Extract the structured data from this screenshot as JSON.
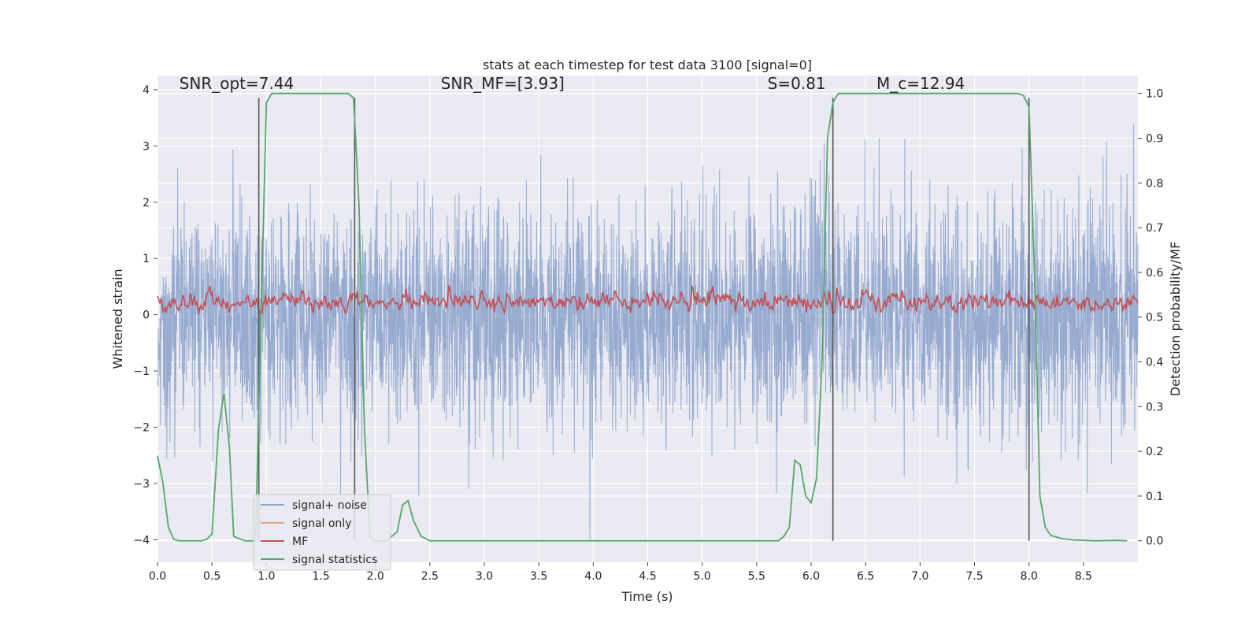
{
  "chart_data": {
    "type": "line",
    "title": "stats at each timestep for test data 3100 [signal=0]",
    "xlabel": "Time (s)",
    "ylabel_left": "Whitened strain",
    "ylabel_right": "Detection probability/MF",
    "xlim": [
      0,
      9.0
    ],
    "ylim_left": [
      -4.4,
      4.25
    ],
    "ylim_right": [
      -0.048,
      1.04
    ],
    "x_ticks": [
      0.0,
      0.5,
      1.0,
      1.5,
      2.0,
      2.5,
      3.0,
      3.5,
      4.0,
      4.5,
      5.0,
      5.5,
      6.0,
      6.5,
      7.0,
      7.5,
      8.0,
      8.5
    ],
    "x_tick_labels": [
      "0.0",
      "0.5",
      "1.0",
      "1.5",
      "2.0",
      "2.5",
      "3.0",
      "3.5",
      "4.0",
      "4.5",
      "5.0",
      "5.5",
      "6.0",
      "6.5",
      "7.0",
      "7.5",
      "8.0",
      "8.5"
    ],
    "y_left_ticks": [
      4,
      3,
      2,
      1,
      0,
      -1,
      -2,
      -3,
      -4
    ],
    "y_left_tick_labels": [
      "4",
      "3",
      "2",
      "1",
      "0",
      "−1",
      "−2",
      "−3",
      "−4"
    ],
    "y_right_ticks": [
      1.0,
      0.9,
      0.8,
      0.7,
      0.6,
      0.5,
      0.4,
      0.3,
      0.2,
      0.1,
      0.0
    ],
    "y_right_tick_labels": [
      "1.0",
      "0.9",
      "0.8",
      "0.7",
      "0.6",
      "0.5",
      "0.4",
      "0.3",
      "0.2",
      "0.1",
      "0.0"
    ],
    "annotations": [
      {
        "text": "SNR_opt=7.44",
        "x": 0.2,
        "y_right": 1.01
      },
      {
        "text": "SNR_MF=[3.93]",
        "x": 2.6,
        "y_right": 1.01
      },
      {
        "text": "S=0.81",
        "x": 5.6,
        "y_right": 1.01
      },
      {
        "text": "M_c=12.94",
        "x": 6.6,
        "y_right": 1.01
      }
    ],
    "vlines": [
      {
        "x": 0.93,
        "y_right": [
          0.0,
          0.99
        ]
      },
      {
        "x": 1.81,
        "y_right": [
          0.0,
          0.99
        ]
      },
      {
        "x": 6.2,
        "y_right": [
          0.0,
          0.99
        ]
      },
      {
        "x": 8.0,
        "y_right": [
          0.0,
          0.99
        ]
      }
    ],
    "series": [
      {
        "name": "signal+ noise",
        "color": "#8ea4cc",
        "axis": "left",
        "envelope_upper": 1.5,
        "envelope_lower": -1.5,
        "typical_peak": 3.0,
        "typical_trough": -3.2
      },
      {
        "name": "signal only",
        "color": "#e9a27c",
        "axis": "left",
        "values": []
      },
      {
        "name": "MF",
        "color": "#c44e52",
        "axis": "right",
        "range": [
          0.51,
          0.62
        ]
      },
      {
        "name": "signal statistics",
        "color": "#55a868",
        "axis": "right",
        "x": [
          0.0,
          0.05,
          0.1,
          0.15,
          0.2,
          0.3,
          0.4,
          0.45,
          0.5,
          0.56,
          0.61,
          0.66,
          0.7,
          0.8,
          0.85,
          0.9,
          0.95,
          1.0,
          1.05,
          1.1,
          1.2,
          1.4,
          1.6,
          1.75,
          1.8,
          1.85,
          1.9,
          1.95,
          2.0,
          2.1,
          2.2,
          2.25,
          2.3,
          2.35,
          2.42,
          2.5,
          3.0,
          4.0,
          5.0,
          5.7,
          5.75,
          5.8,
          5.85,
          5.9,
          5.95,
          6.0,
          6.05,
          6.1,
          6.15,
          6.2,
          6.25,
          6.3,
          6.5,
          7.0,
          7.5,
          7.9,
          7.95,
          8.0,
          8.05,
          8.1,
          8.15,
          8.2,
          8.3,
          8.4,
          8.6,
          8.8,
          8.9
        ],
        "values": [
          0.19,
          0.13,
          0.03,
          0.003,
          0.0,
          0.0,
          0.0,
          0.003,
          0.015,
          0.25,
          0.33,
          0.21,
          0.01,
          0.0,
          0.0,
          0.0,
          0.5,
          0.98,
          1.0,
          1.0,
          1.0,
          1.0,
          1.0,
          1.0,
          0.99,
          0.75,
          0.25,
          0.01,
          0.0,
          0.0,
          0.02,
          0.08,
          0.09,
          0.045,
          0.01,
          0.0,
          0.0,
          0.0,
          0.0,
          0.0,
          0.01,
          0.03,
          0.18,
          0.17,
          0.1,
          0.085,
          0.14,
          0.4,
          0.9,
          0.98,
          1.0,
          1.0,
          1.0,
          1.0,
          1.0,
          1.0,
          0.995,
          0.97,
          0.6,
          0.1,
          0.03,
          0.012,
          0.005,
          0.002,
          0.0,
          0.001,
          0.0
        ]
      }
    ],
    "legend_position": "lower-left"
  }
}
